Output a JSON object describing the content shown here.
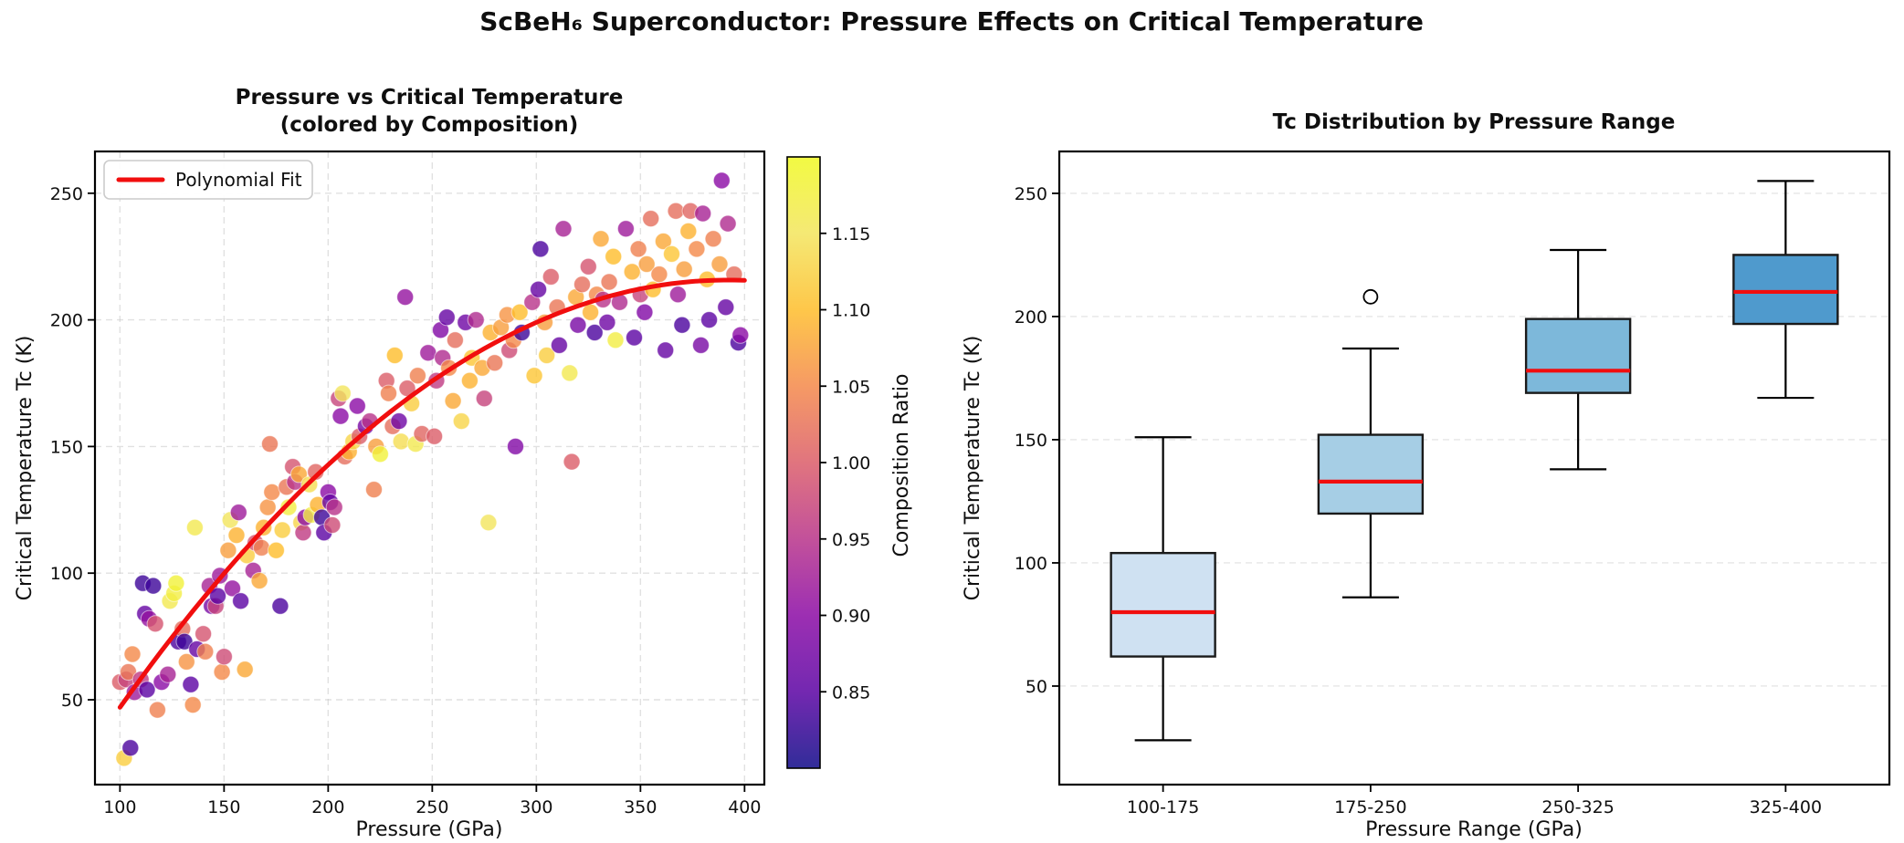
{
  "figure": {
    "title": "ScBeH₆ Superconductor: Pressure Effects on Critical Temperature"
  },
  "chart_data": [
    {
      "type": "scatter",
      "title_line1": "Pressure vs Critical Temperature",
      "title_line2": "(colored by Composition)",
      "xlabel": "Pressure (GPa)",
      "ylabel": "Critical Temperature Tc (K)",
      "legend_label": "Polynomial Fit",
      "xlim": [
        88,
        409.5
      ],
      "ylim": [
        16.5,
        266.5
      ],
      "xticks": [
        100,
        150,
        200,
        250,
        300,
        350,
        400
      ],
      "yticks": [
        50,
        100,
        150,
        200,
        250
      ],
      "grid": "both",
      "marker_alpha": 0.8,
      "colormap": "plasma",
      "fit": {
        "type": "quadratic",
        "a": -0.00198,
        "b": 1.552,
        "c": -88.4,
        "x_start": 100,
        "x_end": 400,
        "color": "#f10e0e"
      },
      "colorbar": {
        "label": "Composition Ratio",
        "vmin": 0.8,
        "vmax": 1.2,
        "ticks": [
          0.85,
          0.9,
          0.95,
          1.0,
          1.05,
          1.1,
          1.15
        ]
      },
      "points": [
        [
          100,
          57,
          1.0
        ],
        [
          102,
          27,
          1.12
        ],
        [
          103,
          58,
          0.97
        ],
        [
          104,
          61,
          1.03
        ],
        [
          105,
          31,
          0.84
        ],
        [
          106,
          68,
          1.05
        ],
        [
          107,
          53,
          0.92
        ],
        [
          110,
          58,
          0.96
        ],
        [
          111,
          96,
          0.83
        ],
        [
          112,
          84,
          0.86
        ],
        [
          113,
          54,
          0.85
        ],
        [
          114,
          82,
          0.91
        ],
        [
          116,
          95,
          0.83
        ],
        [
          117,
          80,
          0.99
        ],
        [
          118,
          46,
          1.04
        ],
        [
          120,
          57,
          0.9
        ],
        [
          123,
          60,
          0.93
        ],
        [
          124,
          89,
          1.16
        ],
        [
          126,
          92,
          1.17
        ],
        [
          127,
          96,
          1.18
        ],
        [
          128,
          73,
          0.84
        ],
        [
          130,
          78,
          1.02
        ],
        [
          131,
          73,
          0.83
        ],
        [
          132,
          65,
          1.06
        ],
        [
          134,
          56,
          0.85
        ],
        [
          135,
          48,
          1.05
        ],
        [
          136,
          118,
          1.16
        ],
        [
          137,
          70,
          0.86
        ],
        [
          140,
          76,
          0.99
        ],
        [
          141,
          69,
          1.04
        ],
        [
          143,
          95,
          0.93
        ],
        [
          144,
          87,
          0.88
        ],
        [
          146,
          87,
          0.97
        ],
        [
          147,
          91,
          0.85
        ],
        [
          148,
          99,
          0.92
        ],
        [
          149,
          61,
          1.05
        ],
        [
          150,
          67,
          0.98
        ],
        [
          152,
          109,
          1.07
        ],
        [
          153,
          121,
          1.15
        ],
        [
          154,
          94,
          0.91
        ],
        [
          156,
          115,
          1.09
        ],
        [
          157,
          124,
          0.92
        ],
        [
          158,
          89,
          0.85
        ],
        [
          160,
          62,
          1.08
        ],
        [
          161,
          107,
          1.12
        ],
        [
          164,
          101,
          0.93
        ],
        [
          165,
          112,
          0.99
        ],
        [
          167,
          97,
          1.08
        ],
        [
          168,
          110,
          1.04
        ],
        [
          169,
          118,
          1.09
        ],
        [
          171,
          126,
          1.06
        ],
        [
          172,
          151,
          1.03
        ],
        [
          173,
          132,
          1.05
        ],
        [
          175,
          109,
          1.1
        ],
        [
          177,
          87,
          0.84
        ],
        [
          178,
          117,
          1.12
        ],
        [
          180,
          134,
          1.03
        ],
        [
          181,
          126,
          1.17
        ],
        [
          183,
          142,
          0.99
        ],
        [
          184,
          136,
          0.95
        ],
        [
          186,
          139,
          1.08
        ],
        [
          187,
          120,
          1.13
        ],
        [
          188,
          116,
          0.96
        ],
        [
          189,
          122,
          0.9
        ],
        [
          191,
          135,
          1.14
        ],
        [
          192,
          123,
          1.17
        ],
        [
          194,
          140,
          1.01
        ],
        [
          195,
          127,
          1.09
        ],
        [
          197,
          122,
          0.83
        ],
        [
          198,
          116,
          0.85
        ],
        [
          200,
          132,
          0.9
        ],
        [
          201,
          128,
          0.86
        ],
        [
          202,
          119,
          0.98
        ],
        [
          203,
          126,
          0.95
        ],
        [
          205,
          169,
          0.97
        ],
        [
          206,
          162,
          0.9
        ],
        [
          207,
          171,
          1.15
        ],
        [
          208,
          146,
          1.02
        ],
        [
          210,
          148,
          1.09
        ],
        [
          212,
          152,
          1.13
        ],
        [
          214,
          166,
          0.9
        ],
        [
          215,
          154,
          1.0
        ],
        [
          218,
          158,
          0.88
        ],
        [
          220,
          160,
          0.95
        ],
        [
          222,
          133,
          1.04
        ],
        [
          223,
          150,
          1.07
        ],
        [
          225,
          147,
          1.18
        ],
        [
          228,
          176,
          1.0
        ],
        [
          229,
          171,
          1.04
        ],
        [
          231,
          158,
          1.02
        ],
        [
          232,
          186,
          1.1
        ],
        [
          234,
          160,
          0.87
        ],
        [
          235,
          152,
          1.14
        ],
        [
          237,
          209,
          0.91
        ],
        [
          238,
          173,
          1.0
        ],
        [
          240,
          167,
          1.12
        ],
        [
          242,
          151,
          1.16
        ],
        [
          243,
          178,
          1.04
        ],
        [
          245,
          155,
          1.01
        ],
        [
          248,
          187,
          0.92
        ],
        [
          251,
          154,
          1.0
        ],
        [
          252,
          176,
          0.96
        ],
        [
          254,
          196,
          0.89
        ],
        [
          255,
          185,
          0.94
        ],
        [
          257,
          201,
          0.86
        ],
        [
          258,
          181,
          1.05
        ],
        [
          260,
          168,
          1.08
        ],
        [
          261,
          192,
          1.02
        ],
        [
          264,
          160,
          1.13
        ],
        [
          266,
          199,
          0.87
        ],
        [
          268,
          176,
          1.09
        ],
        [
          269,
          185,
          1.11
        ],
        [
          271,
          200,
          0.94
        ],
        [
          274,
          181,
          1.08
        ],
        [
          275,
          169,
          0.97
        ],
        [
          277,
          120,
          1.15
        ],
        [
          278,
          195,
          1.09
        ],
        [
          280,
          183,
          1.03
        ],
        [
          283,
          197,
          1.07
        ],
        [
          286,
          202,
          1.06
        ],
        [
          287,
          188,
          0.98
        ],
        [
          289,
          192,
          1.05
        ],
        [
          290,
          150,
          0.89
        ],
        [
          292,
          203,
          1.1
        ],
        [
          293,
          195,
          0.83
        ],
        [
          298,
          207,
          0.95
        ],
        [
          299,
          178,
          1.11
        ],
        [
          301,
          212,
          0.86
        ],
        [
          302,
          228,
          0.84
        ],
        [
          304,
          199,
          1.07
        ],
        [
          305,
          186,
          1.12
        ],
        [
          307,
          217,
          1.0
        ],
        [
          310,
          205,
          1.03
        ],
        [
          311,
          190,
          0.86
        ],
        [
          313,
          236,
          0.93
        ],
        [
          316,
          179,
          1.16
        ],
        [
          317,
          144,
          1.0
        ],
        [
          319,
          209,
          1.08
        ],
        [
          320,
          198,
          0.88
        ],
        [
          322,
          214,
          1.02
        ],
        [
          325,
          221,
          0.99
        ],
        [
          326,
          203,
          1.09
        ],
        [
          328,
          195,
          0.84
        ],
        [
          329,
          210,
          1.05
        ],
        [
          331,
          232,
          1.08
        ],
        [
          332,
          208,
          0.95
        ],
        [
          334,
          199,
          0.87
        ],
        [
          335,
          215,
          1.03
        ],
        [
          337,
          225,
          1.1
        ],
        [
          338,
          192,
          1.17
        ],
        [
          340,
          207,
          0.94
        ],
        [
          343,
          236,
          0.92
        ],
        [
          346,
          219,
          1.09
        ],
        [
          347,
          193,
          0.85
        ],
        [
          349,
          228,
          1.04
        ],
        [
          350,
          210,
          0.97
        ],
        [
          352,
          203,
          0.89
        ],
        [
          353,
          222,
          1.07
        ],
        [
          355,
          240,
          1.02
        ],
        [
          356,
          212,
          1.1
        ],
        [
          359,
          218,
          1.05
        ],
        [
          361,
          231,
          1.08
        ],
        [
          362,
          188,
          0.86
        ],
        [
          365,
          226,
          1.11
        ],
        [
          367,
          243,
          1.02
        ],
        [
          368,
          210,
          0.92
        ],
        [
          370,
          198,
          0.84
        ],
        [
          371,
          220,
          1.07
        ],
        [
          373,
          235,
          1.09
        ],
        [
          374,
          243,
          1.01
        ],
        [
          377,
          228,
          1.05
        ],
        [
          379,
          190,
          0.88
        ],
        [
          380,
          242,
          0.93
        ],
        [
          382,
          216,
          1.1
        ],
        [
          383,
          200,
          0.85
        ],
        [
          385,
          232,
          1.04
        ],
        [
          388,
          222,
          1.07
        ],
        [
          389,
          255,
          0.9
        ],
        [
          391,
          205,
          0.86
        ],
        [
          392,
          238,
          0.94
        ],
        [
          395,
          218,
          1.02
        ],
        [
          397,
          191,
          0.84
        ],
        [
          398,
          194,
          0.9
        ]
      ]
    },
    {
      "type": "boxplot",
      "title": "Tc Distribution by Pressure Range",
      "xlabel": "Pressure Range (GPa)",
      "ylabel": "Critical Temperature Tc (K)",
      "categories": [
        "100-175",
        "175-250",
        "250-325",
        "325-400"
      ],
      "ylim": [
        10,
        267
      ],
      "yticks": [
        50,
        100,
        150,
        200,
        250
      ],
      "grid": "horizontal",
      "stats": [
        {
          "label": "100-175",
          "whislo": 28,
          "q1": 62,
          "med": 80,
          "q3": 104,
          "whishi": 151,
          "fliers": []
        },
        {
          "label": "175-250",
          "whislo": 86,
          "q1": 120,
          "med": 133,
          "q3": 152,
          "whishi": 187,
          "fliers": [
            208
          ]
        },
        {
          "label": "250-325",
          "whislo": 138,
          "q1": 169,
          "med": 178,
          "q3": 199,
          "whishi": 227,
          "fliers": []
        },
        {
          "label": "325-400",
          "whislo": 167,
          "q1": 197,
          "med": 210,
          "q3": 225,
          "whishi": 255,
          "fliers": []
        }
      ],
      "box_colors": [
        "#cfe1f2",
        "#a6cee5",
        "#7db8da",
        "#4f9acd"
      ],
      "median_color": "#f10e0e",
      "box_edge_color": "#1a1a1a",
      "whisker_color": "#000000"
    }
  ]
}
